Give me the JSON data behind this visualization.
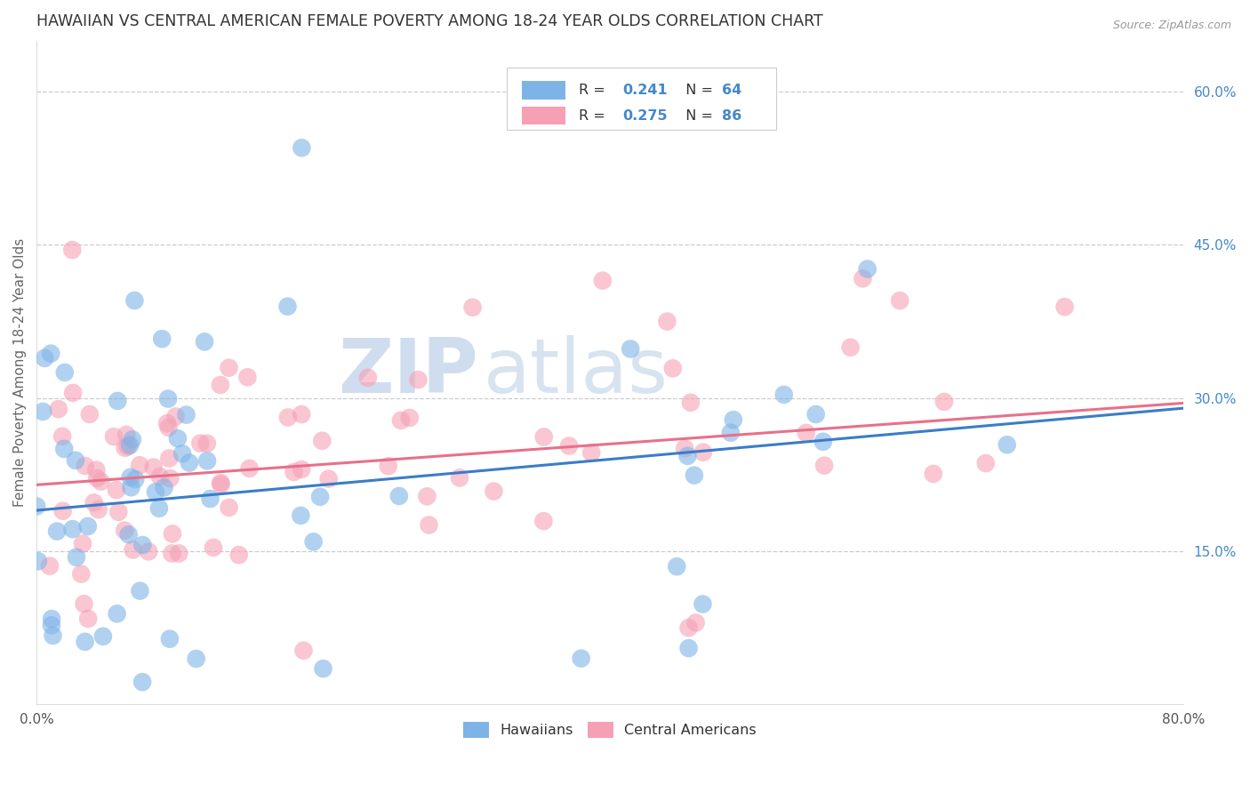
{
  "title": "HAWAIIAN VS CENTRAL AMERICAN FEMALE POVERTY AMONG 18-24 YEAR OLDS CORRELATION CHART",
  "source": "Source: ZipAtlas.com",
  "ylabel": "Female Poverty Among 18-24 Year Olds",
  "xlim": [
    0.0,
    0.8
  ],
  "ylim": [
    0.0,
    0.65
  ],
  "x_ticks": [
    0.0,
    0.8
  ],
  "x_tick_labels": [
    "0.0%",
    "80.0%"
  ],
  "y_ticks": [
    0.0,
    0.15,
    0.3,
    0.45,
    0.6
  ],
  "y_tick_labels_right": [
    "",
    "15.0%",
    "30.0%",
    "45.0%",
    "60.0%"
  ],
  "hawaiian_color": "#7eb3e8",
  "central_american_color": "#f5a0b5",
  "hawaiian_R": 0.241,
  "hawaiian_N": 64,
  "central_american_R": 0.275,
  "central_american_N": 86,
  "hawaiian_line_color": "#3a7dc9",
  "central_american_line_color": "#e8708a",
  "background_color": "#ffffff",
  "legend_color": "#4488cc",
  "hawaiian_line_y0": 0.19,
  "hawaiian_line_y1": 0.29,
  "central_american_line_y0": 0.215,
  "central_american_line_y1": 0.295
}
